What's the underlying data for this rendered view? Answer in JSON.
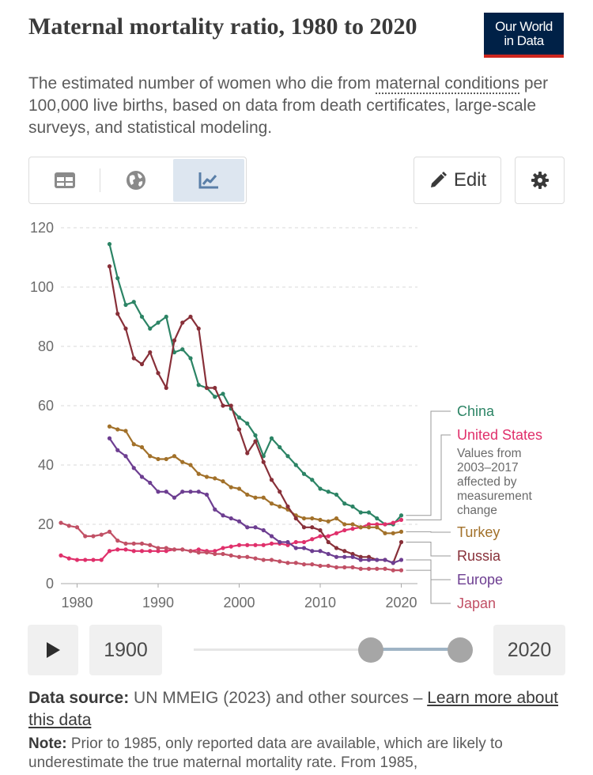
{
  "header": {
    "title": "Maternal mortality ratio, 1980 to 2020",
    "subtitle_pre": "The estimated number of women who die from ",
    "subtitle_link": "maternal conditions",
    "subtitle_post": " per 100,000 live births, based on data from death certificates, large-scale surveys, and statistical modeling.",
    "logo_line1": "Our World",
    "logo_line2": "in Data"
  },
  "toolbar": {
    "tabs": [
      {
        "icon": "table-icon",
        "active": false
      },
      {
        "icon": "globe-icon",
        "active": false
      },
      {
        "icon": "line-chart-icon",
        "active": true
      }
    ],
    "edit_label": "Edit",
    "settings_icon": "gear-icon"
  },
  "timeline": {
    "start_year": "1900",
    "end_year": "2020",
    "play_icon": "play-icon"
  },
  "footer": {
    "source_label": "Data source:",
    "source_text": " UN MMEIG (2023) and other sources – ",
    "source_link": "Learn more about this data",
    "note_label": "Note:",
    "note_text": " Prior to 1985, only reported data are available, which are likely to underestimate the true maternal mortality rate. From 1985,"
  },
  "chart_data": {
    "type": "line",
    "title": "Maternal mortality ratio, 1980 to 2020",
    "xlabel": "",
    "ylabel": "",
    "xlim": [
      1978,
      2022
    ],
    "ylim": [
      0,
      120
    ],
    "yticks": [
      0,
      20,
      40,
      60,
      80,
      100,
      120
    ],
    "xticks": [
      1980,
      1990,
      2000,
      2010,
      2020
    ],
    "grid": true,
    "legend_position": "right",
    "us_note": "Values from 2003–2017 affected by measurement change",
    "series": [
      {
        "name": "China",
        "color": "#2c8465",
        "x": [
          1984,
          1985,
          1986,
          1987,
          1988,
          1989,
          1990,
          1991,
          1992,
          1993,
          1994,
          1995,
          1996,
          1997,
          1998,
          1999,
          2000,
          2001,
          2002,
          2003,
          2004,
          2005,
          2006,
          2007,
          2008,
          2009,
          2010,
          2011,
          2012,
          2013,
          2014,
          2015,
          2016,
          2017,
          2018,
          2019,
          2020
        ],
        "y": [
          114.5,
          103,
          94,
          95,
          90,
          86,
          88,
          90,
          78,
          79,
          76,
          67,
          66,
          63,
          64,
          59,
          56,
          54,
          50,
          43,
          49,
          46,
          43,
          40,
          37,
          35,
          32,
          31,
          30,
          27,
          26,
          24,
          24,
          22,
          20,
          20,
          23
        ]
      },
      {
        "name": "United States",
        "color": "#e0306b",
        "x": [
          1978,
          1979,
          1980,
          1981,
          1982,
          1983,
          1984,
          1985,
          1986,
          1987,
          1988,
          1989,
          1990,
          1991,
          1992,
          1993,
          1994,
          1995,
          1996,
          1997,
          1998,
          1999,
          2000,
          2001,
          2002,
          2003,
          2004,
          2005,
          2006,
          2007,
          2008,
          2009,
          2010,
          2011,
          2012,
          2013,
          2014,
          2015,
          2016,
          2017,
          2018,
          2019,
          2020
        ],
        "y": [
          9.5,
          8.5,
          8,
          8,
          8,
          8,
          11,
          11.5,
          11.5,
          11,
          11,
          11,
          11,
          11,
          11.5,
          11.5,
          11,
          11.5,
          11,
          11,
          12,
          12.5,
          13,
          13,
          13,
          13,
          13.5,
          13.5,
          13,
          14,
          14,
          15,
          16,
          16,
          17,
          18,
          18.5,
          19,
          20,
          20,
          20,
          20.5,
          21.5
        ]
      },
      {
        "name": "Turkey",
        "color": "#a2712a",
        "x": [
          1984,
          1985,
          1986,
          1987,
          1988,
          1989,
          1990,
          1991,
          1992,
          1993,
          1994,
          1995,
          1996,
          1997,
          1998,
          1999,
          2000,
          2001,
          2002,
          2003,
          2004,
          2005,
          2006,
          2007,
          2008,
          2009,
          2010,
          2011,
          2012,
          2013,
          2014,
          2015,
          2016,
          2017,
          2018,
          2019,
          2020
        ],
        "y": [
          53,
          52,
          51.5,
          47,
          46,
          43,
          42,
          42,
          43,
          41,
          40,
          37,
          36,
          35.5,
          34.5,
          32.5,
          32,
          30,
          29,
          29,
          27,
          26,
          25,
          23,
          22,
          22,
          21.5,
          21,
          22,
          20,
          20,
          19,
          19,
          19,
          17,
          17,
          17.5
        ]
      },
      {
        "name": "Russia",
        "color": "#883039",
        "x": [
          1984,
          1985,
          1986,
          1987,
          1988,
          1989,
          1990,
          1991,
          1992,
          1993,
          1994,
          1995,
          1996,
          1997,
          1998,
          1999,
          2000,
          2001,
          2002,
          2003,
          2004,
          2005,
          2006,
          2007,
          2008,
          2009,
          2010,
          2011,
          2012,
          2013,
          2014,
          2015,
          2016,
          2017,
          2018,
          2019,
          2020
        ],
        "y": [
          107,
          91,
          86,
          76,
          74,
          78,
          71,
          66,
          82,
          88,
          90,
          86,
          66,
          66,
          60,
          60,
          52,
          44,
          48,
          41,
          35,
          31,
          26,
          22,
          19,
          19,
          18,
          14,
          12,
          11,
          10,
          9,
          9,
          8,
          8,
          7,
          14
        ]
      },
      {
        "name": "Europe",
        "color": "#6d3e91",
        "x": [
          1984,
          1985,
          1986,
          1987,
          1988,
          1989,
          1990,
          1991,
          1992,
          1993,
          1994,
          1995,
          1996,
          1997,
          1998,
          1999,
          2000,
          2001,
          2002,
          2003,
          2004,
          2005,
          2006,
          2007,
          2008,
          2009,
          2010,
          2011,
          2012,
          2013,
          2014,
          2015,
          2016,
          2017,
          2018,
          2019,
          2020
        ],
        "y": [
          49,
          45,
          43,
          39,
          36,
          34,
          31,
          31,
          29,
          31,
          31,
          31,
          30,
          25,
          23,
          22,
          21,
          19,
          19,
          18,
          16,
          14,
          14,
          12,
          12,
          11,
          11,
          10,
          9,
          9,
          9,
          8,
          8,
          8,
          8,
          7,
          8
        ]
      },
      {
        "name": "Japan",
        "color": "#c15065",
        "x": [
          1978,
          1979,
          1980,
          1981,
          1982,
          1983,
          1984,
          1985,
          1986,
          1987,
          1988,
          1989,
          1990,
          1991,
          1992,
          1993,
          1994,
          1995,
          1996,
          1997,
          1998,
          1999,
          2000,
          2001,
          2002,
          2003,
          2004,
          2005,
          2006,
          2007,
          2008,
          2009,
          2010,
          2011,
          2012,
          2013,
          2014,
          2015,
          2016,
          2017,
          2018,
          2019,
          2020
        ],
        "y": [
          20.5,
          19.5,
          19,
          16,
          16,
          16.5,
          17.5,
          14.5,
          13.5,
          13.5,
          13.5,
          13,
          12,
          12,
          11.5,
          11.5,
          11,
          10.5,
          10.5,
          10,
          10,
          9.5,
          9,
          9,
          8.5,
          8,
          8,
          7.5,
          7,
          7,
          6.5,
          6.5,
          6,
          6,
          5.5,
          5.5,
          5.5,
          5,
          5,
          5,
          5,
          4.5,
          4.5
        ]
      }
    ]
  }
}
